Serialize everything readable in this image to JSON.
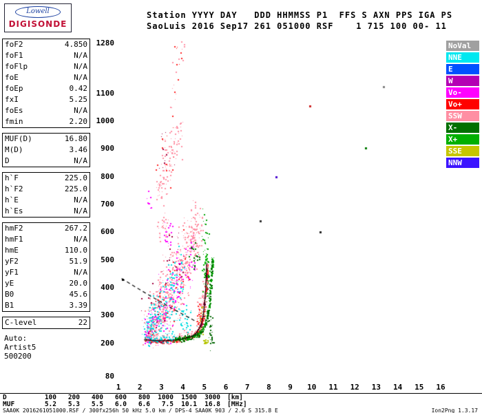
{
  "logo": {
    "top": "Lowell",
    "bottom": "DIGISONDE"
  },
  "header": {
    "line1": "Station YYYY DAY   DDD HHMMSS P1  FFS S AXN PPS IGA PS",
    "line2": "SaoLuis 2016 Sep17 261 051000 RSF    1 715 100 00- 11"
  },
  "params": {
    "groups": [
      {
        "rows": [
          {
            "label": "foF2",
            "value": "4.850"
          },
          {
            "label": "foF1",
            "value": "N/A"
          },
          {
            "label": "foFlp",
            "value": "N/A"
          },
          {
            "label": "foE",
            "value": "N/A"
          },
          {
            "label": "foEp",
            "value": "0.42"
          },
          {
            "label": "fxI",
            "value": "5.25"
          },
          {
            "label": "foEs",
            "value": "N/A"
          },
          {
            "label": "fmin",
            "value": "2.20"
          }
        ]
      },
      {
        "rows": [
          {
            "label": "MUF(D)",
            "value": "16.80"
          },
          {
            "label": "M(D)",
            "value": "3.46"
          },
          {
            "label": "D",
            "value": "N/A"
          }
        ]
      },
      {
        "rows": [
          {
            "label": "h`F",
            "value": "225.0"
          },
          {
            "label": "h`F2",
            "value": "225.0"
          },
          {
            "label": "h`E",
            "value": "N/A"
          },
          {
            "label": "h`Es",
            "value": "N/A"
          }
        ]
      },
      {
        "rows": [
          {
            "label": "hmF2",
            "value": "267.2"
          },
          {
            "label": "hmF1",
            "value": "N/A"
          },
          {
            "label": "hmE",
            "value": "110.0"
          },
          {
            "label": "yF2",
            "value": "51.9"
          },
          {
            "label": "yF1",
            "value": "N/A"
          },
          {
            "label": "yE",
            "value": "20.0"
          },
          {
            "label": "B0",
            "value": "45.6"
          },
          {
            "label": "B1",
            "value": "3.39"
          }
        ]
      },
      {
        "rows": [
          {
            "label": "C-level",
            "value": "22"
          }
        ]
      }
    ],
    "auto_lines": [
      "Auto:",
      "Artist5",
      "500200"
    ]
  },
  "legend": {
    "items": [
      {
        "label": "NoVal",
        "color": "#a0a0a0"
      },
      {
        "label": "NNE",
        "color": "#00e8f0"
      },
      {
        "label": "E",
        "color": "#0050ff"
      },
      {
        "label": "W",
        "color": "#b400b4"
      },
      {
        "label": "Vo-",
        "color": "#ff00ff"
      },
      {
        "label": "Vo+",
        "color": "#ff0000"
      },
      {
        "label": "SSW",
        "color": "#ff8fa3"
      },
      {
        "label": "X-",
        "color": "#007000"
      },
      {
        "label": "X+",
        "color": "#00b000"
      },
      {
        "label": "SSE",
        "color": "#c6c600"
      },
      {
        "label": "NNW",
        "color": "#3c14ff"
      }
    ]
  },
  "chart_data": {
    "type": "scatter",
    "title": "Digisonde ionogram SaoLuis 2016 Sep17 261 051000 UT",
    "xlabel": "[MHz]",
    "ylabel": "[km]",
    "xlim": [
      1,
      16
    ],
    "ylim": [
      80,
      1280
    ],
    "x_ticks": [
      1,
      2,
      3,
      4,
      5,
      6,
      7,
      8,
      9,
      10,
      11,
      12,
      13,
      14,
      15,
      16
    ],
    "y_ticks": [
      1280,
      1100,
      1000,
      900,
      800,
      700,
      600,
      500,
      400,
      300,
      200,
      80
    ],
    "grid": false,
    "legend_position": "right",
    "traces": [
      {
        "name": "O-trace main (Vo+)",
        "color": "#ff2222",
        "n": 260,
        "jh": 4,
        "dh": 0,
        "path": [
          [
            2.2,
            211
          ],
          [
            2.6,
            209
          ],
          [
            3.0,
            209
          ],
          [
            3.4,
            210
          ],
          [
            3.8,
            213
          ],
          [
            4.15,
            218
          ],
          [
            4.45,
            227
          ],
          [
            4.65,
            240
          ],
          [
            4.8,
            258
          ],
          [
            4.92,
            290
          ],
          [
            5.0,
            330
          ],
          [
            5.05,
            380
          ],
          [
            5.09,
            440
          ],
          [
            5.12,
            485
          ]
        ]
      },
      {
        "name": "O-trace spread (SSW)",
        "color": "#ff8fa3",
        "n": 160,
        "jh": 9,
        "dh": 8,
        "path": [
          [
            2.2,
            211
          ],
          [
            2.6,
            209
          ],
          [
            3.0,
            209
          ],
          [
            3.4,
            210
          ],
          [
            3.8,
            213
          ],
          [
            4.15,
            218
          ],
          [
            4.45,
            227
          ],
          [
            4.65,
            240
          ],
          [
            4.8,
            258
          ],
          [
            4.92,
            290
          ],
          [
            5.0,
            330
          ],
          [
            5.05,
            380
          ],
          [
            5.09,
            440
          ],
          [
            5.12,
            485
          ]
        ]
      },
      {
        "name": "O-trace dark",
        "color": "#a00040",
        "n": 55,
        "jh": 3,
        "dh": 0,
        "path": [
          [
            2.2,
            211
          ],
          [
            2.6,
            209
          ],
          [
            3.0,
            209
          ],
          [
            3.4,
            210
          ],
          [
            3.8,
            213
          ],
          [
            4.15,
            218
          ],
          [
            4.45,
            227
          ],
          [
            4.65,
            240
          ],
          [
            4.8,
            258
          ],
          [
            4.92,
            290
          ],
          [
            5.0,
            330
          ],
          [
            5.05,
            380
          ],
          [
            5.09,
            440
          ],
          [
            5.12,
            485
          ]
        ]
      },
      {
        "name": "O-trace NNE",
        "color": "#00dde0",
        "n": 60,
        "jh": 6,
        "dh": 2,
        "path": [
          [
            2.25,
            214
          ],
          [
            2.8,
            211
          ],
          [
            3.3,
            212
          ],
          [
            3.8,
            219
          ]
        ]
      },
      {
        "name": "X-trace (X+)",
        "color": "#00a000",
        "n": 190,
        "jh": 4,
        "dh": 0,
        "path": [
          [
            3.6,
            216
          ],
          [
            4.0,
            216
          ],
          [
            4.35,
            220
          ],
          [
            4.65,
            228
          ],
          [
            4.85,
            244
          ],
          [
            5.05,
            272
          ],
          [
            5.18,
            315
          ],
          [
            5.27,
            380
          ],
          [
            5.33,
            455
          ],
          [
            5.36,
            505
          ]
        ]
      },
      {
        "name": "X-trace (X-)",
        "color": "#006600",
        "n": 100,
        "jh": 7,
        "dh": 2,
        "path": [
          [
            3.6,
            216
          ],
          [
            4.0,
            216
          ],
          [
            4.35,
            220
          ],
          [
            4.65,
            228
          ],
          [
            4.85,
            244
          ],
          [
            5.05,
            272
          ],
          [
            5.18,
            315
          ],
          [
            5.27,
            380
          ],
          [
            5.33,
            455
          ],
          [
            5.36,
            505
          ]
        ]
      }
    ],
    "blobs": [
      [
        "#ff8fa3",
        2.5,
        262,
        0.18,
        32,
        70
      ],
      [
        "#ff8fa3",
        2.8,
        300,
        0.2,
        46,
        85
      ],
      [
        "#ff8fa3",
        3.1,
        352,
        0.22,
        58,
        85
      ],
      [
        "#ff8fa3",
        3.45,
        408,
        0.22,
        66,
        85
      ],
      [
        "#ff8fa3",
        3.8,
        468,
        0.2,
        66,
        75
      ],
      [
        "#ff8fa3",
        4.15,
        520,
        0.18,
        62,
        65
      ],
      [
        "#ff8fa3",
        4.45,
        565,
        0.14,
        55,
        55
      ],
      [
        "#ff8fa3",
        4.65,
        602,
        0.12,
        50,
        40
      ],
      [
        "#ff8fa3",
        4.85,
        342,
        0.08,
        34,
        45
      ],
      [
        "#ff8fa3",
        3.05,
        628,
        0.14,
        38,
        30
      ],
      [
        "#ff8fa3",
        4.6,
        662,
        0.12,
        38,
        15
      ],
      [
        "#ff00ff",
        2.6,
        272,
        0.2,
        38,
        45
      ],
      [
        "#ff00ff",
        3.2,
        332,
        0.25,
        55,
        55
      ],
      [
        "#ff00ff",
        3.8,
        420,
        0.2,
        55,
        45
      ],
      [
        "#ff00ff",
        4.3,
        500,
        0.15,
        50,
        35
      ],
      [
        "#ff00ff",
        2.35,
        224,
        0.1,
        9,
        22
      ],
      [
        "#ff00ff",
        3.3,
        592,
        0.1,
        28,
        16
      ],
      [
        "#ff00ff",
        2.4,
        700,
        0.08,
        22,
        8
      ],
      [
        "#00dde0",
        2.45,
        256,
        0.18,
        26,
        65
      ],
      [
        "#00dde0",
        2.9,
        300,
        0.25,
        42,
        75
      ],
      [
        "#00dde0",
        3.3,
        360,
        0.25,
        50,
        55
      ],
      [
        "#00dde0",
        3.7,
        428,
        0.2,
        50,
        35
      ],
      [
        "#00dde0",
        4.0,
        282,
        0.25,
        30,
        40
      ],
      [
        "#ff2222",
        3.0,
        322,
        0.4,
        65,
        30
      ],
      [
        "#ff2222",
        3.9,
        478,
        0.3,
        65,
        22
      ],
      [
        "#ff2222",
        4.8,
        282,
        0.08,
        24,
        45
      ],
      [
        "#a00040",
        2.7,
        320,
        0.3,
        55,
        25
      ],
      [
        "#a00040",
        3.5,
        498,
        0.3,
        70,
        20
      ],
      [
        "#ff8fa3",
        2.95,
        762,
        0.12,
        42,
        22
      ],
      [
        "#ff8fa3",
        3.15,
        820,
        0.12,
        46,
        26
      ],
      [
        "#ff8fa3",
        3.4,
        878,
        0.12,
        46,
        26
      ],
      [
        "#ff8fa3",
        3.65,
        928,
        0.11,
        42,
        20
      ],
      [
        "#ff8fa3",
        3.85,
        958,
        0.1,
        32,
        12
      ],
      [
        "#ff2222",
        3.3,
        850,
        0.25,
        75,
        16
      ],
      [
        "#a00040",
        3.2,
        898,
        0.2,
        60,
        10
      ],
      [
        "#ff8fa3",
        3.55,
        1120,
        0.1,
        55,
        8
      ],
      [
        "#ff2222",
        3.8,
        1205,
        0.12,
        48,
        9
      ],
      [
        "#ff8fa3",
        3.95,
        1258,
        0.07,
        20,
        6
      ],
      [
        "#00b300",
        5.05,
        470,
        0.07,
        42,
        65
      ],
      [
        "#008f00",
        5.12,
        422,
        0.05,
        32,
        40
      ],
      [
        "#00a000",
        5.05,
        588,
        0.1,
        42,
        20
      ],
      [
        "#007700",
        4.55,
        515,
        0.15,
        32,
        22
      ],
      [
        "#006600",
        5.28,
        240,
        0.05,
        28,
        30
      ],
      [
        "#b5c400",
        4.85,
        292,
        0.1,
        24,
        26
      ],
      [
        "#b5c400",
        5.05,
        208,
        0.1,
        6,
        12
      ]
    ],
    "isolated_dots": [
      [
        7.6,
        640,
        "#303030"
      ],
      [
        8.35,
        800,
        "#4b0bd0"
      ],
      [
        9.9,
        1055,
        "#cc2222"
      ],
      [
        12.5,
        903,
        "#007a00"
      ],
      [
        13.35,
        1125,
        "#808080"
      ],
      [
        1.18,
        430,
        "#000000"
      ],
      [
        10.4,
        600,
        "#222222"
      ]
    ],
    "artist_trace": [
      [
        2.2,
        212
      ],
      [
        2.7,
        209
      ],
      [
        3.2,
        209
      ],
      [
        3.7,
        212
      ],
      [
        4.1,
        217
      ],
      [
        4.4,
        224
      ],
      [
        4.6,
        235
      ],
      [
        4.75,
        251
      ],
      [
        4.87,
        273
      ],
      [
        4.95,
        302
      ],
      [
        5.01,
        340
      ],
      [
        5.06,
        395
      ],
      [
        5.09,
        450
      ],
      [
        5.11,
        488
      ]
    ],
    "dashed_line": [
      [
        1.15,
        433
      ],
      [
        1.8,
        402
      ],
      [
        2.45,
        372
      ],
      [
        3.05,
        345
      ],
      [
        3.6,
        321
      ],
      [
        4.1,
        300
      ],
      [
        4.55,
        281
      ]
    ]
  },
  "bottom_table": {
    "rows": [
      {
        "label": "D",
        "values": [
          "100",
          "200",
          "400",
          "600",
          "800",
          "1000",
          "1500",
          "3000"
        ],
        "unit": "[km]"
      },
      {
        "label": "MUF",
        "values": [
          "5.2",
          "5.3",
          "5.5",
          "6.0",
          "6.6",
          "7.5",
          "10.1",
          "16.8"
        ],
        "unit": "[MHz]"
      }
    ]
  },
  "footer": {
    "left": "SAA0K_2016261051000.RSF / 300fx256h 50 kHz 5.0 km / DPS-4 SAA0K 903 / 2.6 S 315.8 E",
    "right": "Ion2Png 1.3.17"
  }
}
